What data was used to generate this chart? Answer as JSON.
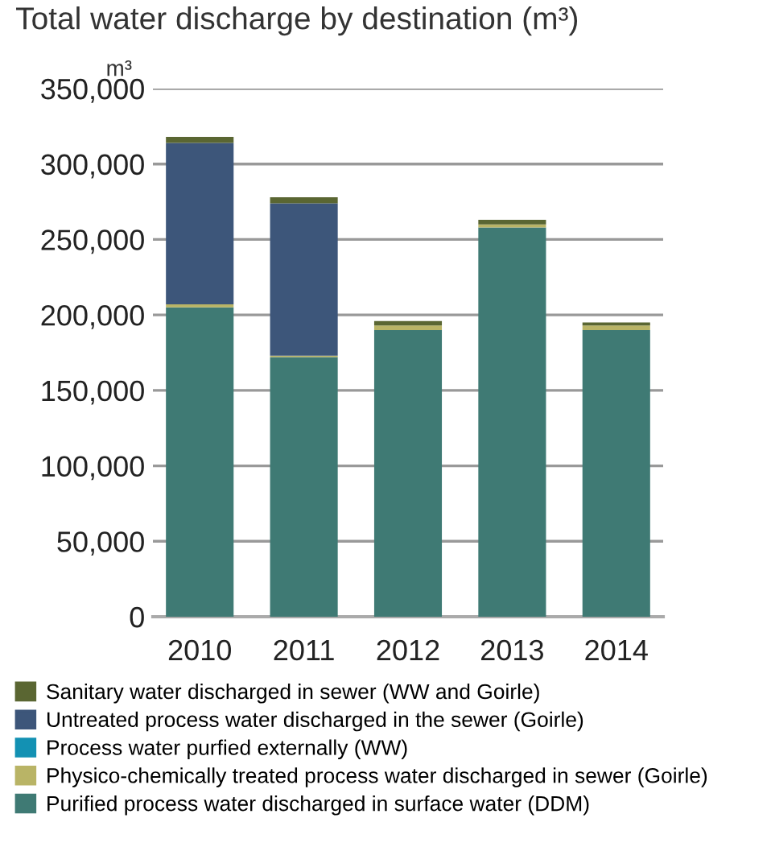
{
  "chart_data": {
    "type": "bar",
    "title": "Total water discharge by destination (m³)",
    "ylabel": "m³",
    "stacked": true,
    "categories": [
      "2010",
      "2011",
      "2012",
      "2013",
      "2014"
    ],
    "series": [
      {
        "name": "Purified process water discharged in surface water (DDM)",
        "color": "#3f7a74",
        "values": [
          205000,
          172000,
          190000,
          258000,
          190000
        ]
      },
      {
        "name": "Physico-chemically treated process water discharged in sewer (Goirle)",
        "color": "#b9b466",
        "values": [
          2000,
          1000,
          3000,
          2000,
          3000
        ]
      },
      {
        "name": "Process water purfied externally (WW)",
        "color": "#1391b3",
        "values": [
          0,
          0,
          0,
          0,
          0
        ]
      },
      {
        "name": "Untreated process water discharged in the sewer (Goirle)",
        "color": "#3d567a",
        "values": [
          107000,
          101000,
          0,
          0,
          0
        ]
      },
      {
        "name": "Sanitary water discharged in sewer (WW and Goirle)",
        "color": "#5a6632",
        "values": [
          4000,
          4000,
          3000,
          3000,
          2000
        ]
      }
    ],
    "ylim": [
      0,
      350000
    ],
    "yticks": [
      {
        "value": 0,
        "label": "0"
      },
      {
        "value": 50000,
        "label": "50,000"
      },
      {
        "value": 100000,
        "label": "100,000"
      },
      {
        "value": 150000,
        "label": "150,000"
      },
      {
        "value": 200000,
        "label": "200,000"
      },
      {
        "value": 250000,
        "label": "250,000"
      },
      {
        "value": 300000,
        "label": "300,000"
      },
      {
        "value": 350000,
        "label": "350,000"
      }
    ],
    "grid": "y",
    "legend": "bottom"
  }
}
